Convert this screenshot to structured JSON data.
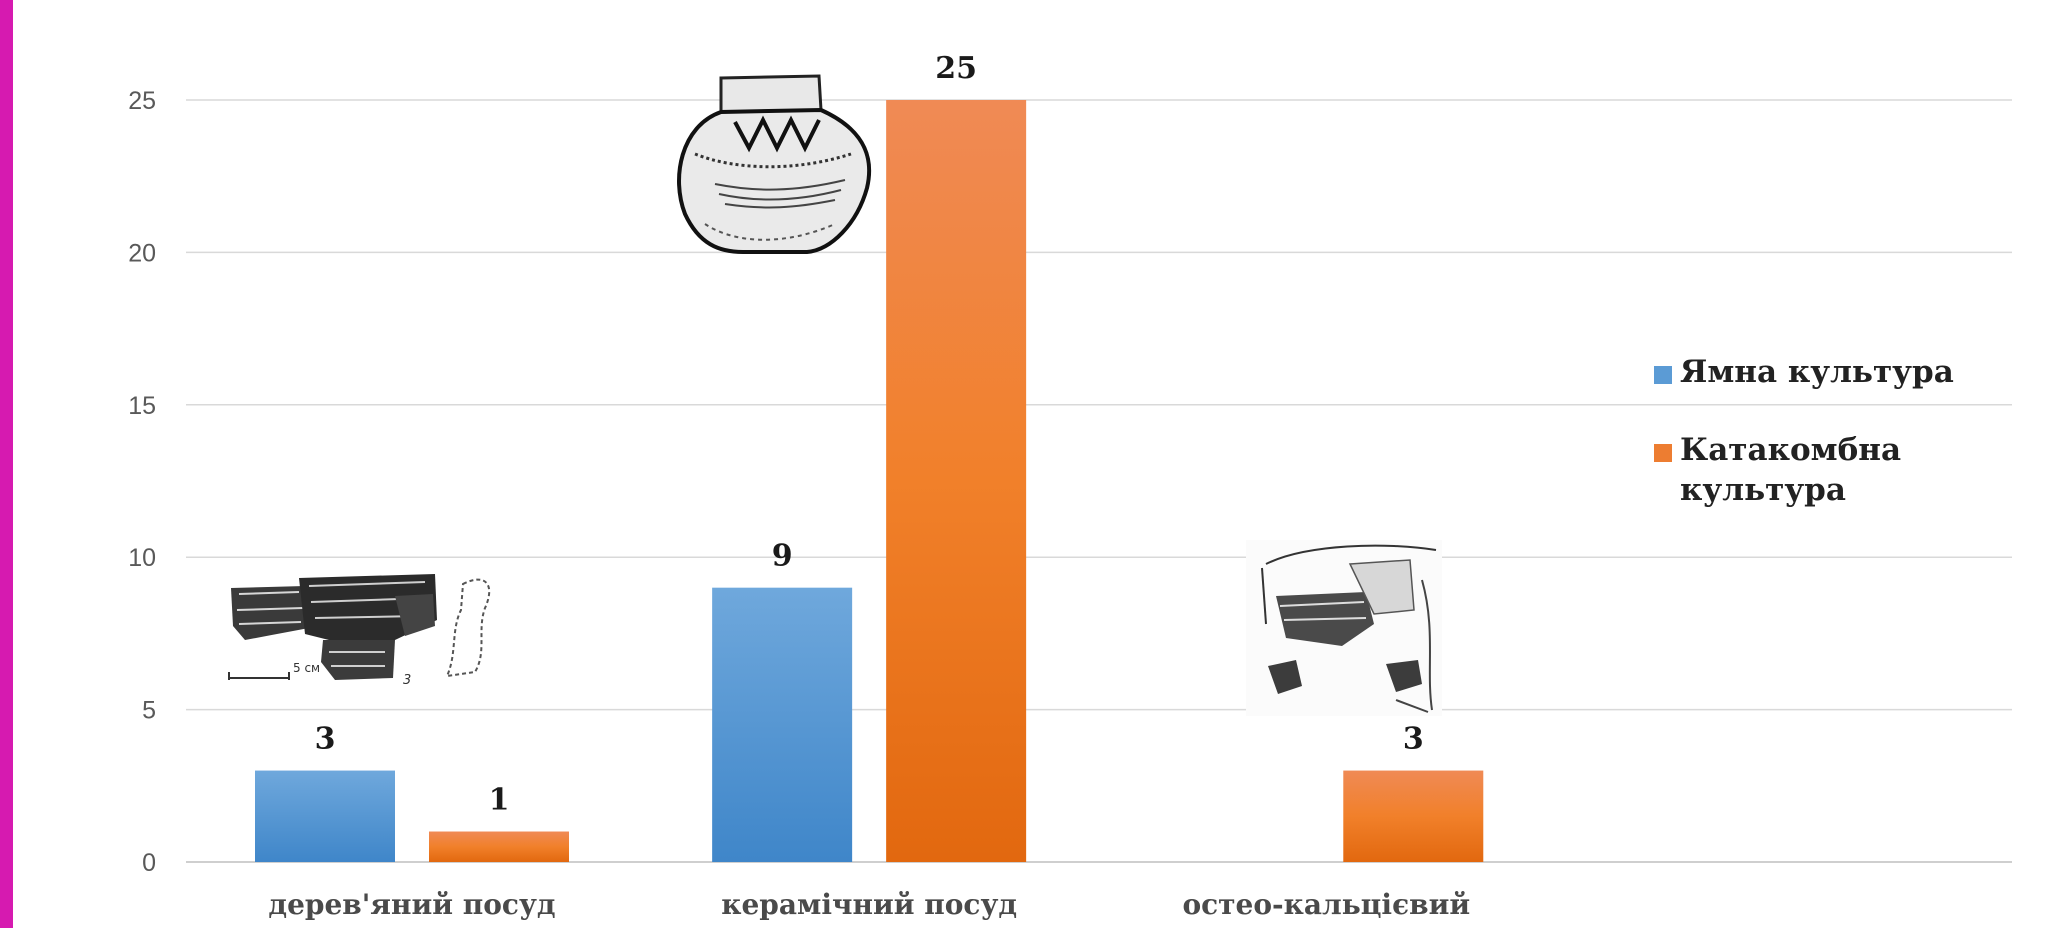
{
  "colors": {
    "accent_bar": "#d61ab0",
    "title": "#1f3a8a",
    "series_1": "#5b9bd5",
    "series_2": "#ed7d31",
    "grid": "#d9d9d9"
  },
  "title_fragment": "",
  "chart_data": {
    "type": "bar",
    "categories": [
      "дерев'яний посуд",
      "керамічний посуд",
      "остео-кальцієвий"
    ],
    "series": [
      {
        "name": "Ямна культура",
        "values": [
          3,
          9,
          null
        ],
        "color": "#5b9bd5"
      },
      {
        "name": "Катакомбна культура",
        "values": [
          1,
          25,
          3
        ],
        "color": "#ed7d31"
      }
    ],
    "ylim": [
      0,
      25
    ],
    "yticks": [
      0,
      5,
      10,
      15,
      20,
      25
    ],
    "grid": true,
    "legend_position": "right",
    "data_labels": true,
    "xlabel": "",
    "ylabel": ""
  },
  "images": [
    {
      "name": "wooden-vessel-fragments-drawing",
      "category_index": 0,
      "caption": "5 см"
    },
    {
      "name": "ceramic-pot-drawing",
      "category_index": 1
    },
    {
      "name": "bone-vessel-fragments-drawing",
      "category_index": 2
    }
  ]
}
